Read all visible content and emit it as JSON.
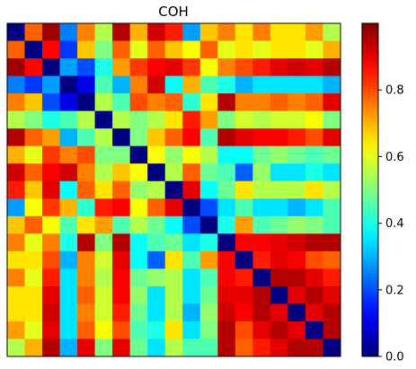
{
  "chart_data": {
    "type": "heatmap",
    "title": "COH",
    "xlabel": "",
    "ylabel": "",
    "colormap": "jet",
    "clim": [
      0.0,
      1.0
    ],
    "colorbar": {
      "ticks": [
        0.0,
        0.2,
        0.4,
        0.6,
        0.8
      ],
      "tick_labels": [
        "0.0",
        "0.2",
        "0.4",
        "0.6",
        "0.8"
      ]
    },
    "matrix": [
      [
        0.0,
        0.78,
        0.97,
        0.25,
        0.75,
        0.55,
        0.95,
        0.7,
        0.92,
        0.85,
        0.28,
        0.68,
        0.75,
        0.65,
        0.75,
        0.65,
        0.65,
        0.72,
        0.55
      ],
      [
        0.78,
        0.0,
        0.87,
        0.18,
        0.68,
        0.5,
        0.78,
        0.6,
        0.78,
        0.68,
        0.62,
        0.78,
        0.6,
        0.65,
        0.6,
        0.65,
        0.65,
        0.6,
        0.7
      ],
      [
        0.97,
        0.87,
        0.0,
        0.28,
        0.2,
        0.4,
        0.72,
        0.82,
        0.88,
        0.9,
        0.82,
        0.62,
        0.75,
        0.8,
        0.85,
        0.9,
        0.92,
        0.9,
        0.95
      ],
      [
        0.25,
        0.18,
        0.28,
        0.0,
        0.1,
        0.45,
        0.3,
        0.75,
        0.92,
        0.38,
        0.7,
        0.45,
        0.4,
        0.3,
        0.35,
        0.35,
        0.35,
        0.35,
        0.3
      ],
      [
        0.75,
        0.68,
        0.2,
        0.1,
        0.0,
        0.55,
        0.45,
        0.8,
        0.75,
        0.78,
        0.42,
        0.65,
        0.95,
        0.75,
        0.75,
        0.78,
        0.75,
        0.78,
        0.9
      ],
      [
        0.55,
        0.5,
        0.4,
        0.45,
        0.55,
        0.0,
        0.55,
        0.5,
        0.55,
        0.65,
        0.85,
        0.72,
        0.5,
        0.58,
        0.55,
        0.58,
        0.58,
        0.62,
        0.5
      ],
      [
        0.95,
        0.78,
        0.72,
        0.3,
        0.45,
        0.55,
        0.0,
        0.5,
        0.68,
        0.78,
        0.88,
        0.45,
        0.95,
        0.9,
        0.88,
        0.88,
        0.85,
        0.8,
        0.9
      ],
      [
        0.7,
        0.6,
        0.82,
        0.75,
        0.8,
        0.5,
        0.5,
        0.0,
        0.62,
        0.52,
        0.62,
        0.55,
        0.38,
        0.38,
        0.48,
        0.52,
        0.48,
        0.45,
        0.48
      ],
      [
        0.92,
        0.78,
        0.88,
        0.92,
        0.75,
        0.55,
        0.68,
        0.62,
        0.0,
        0.55,
        0.78,
        0.48,
        0.45,
        0.22,
        0.52,
        0.35,
        0.35,
        0.4,
        0.35
      ],
      [
        0.85,
        0.68,
        0.9,
        0.38,
        0.78,
        0.65,
        0.78,
        0.52,
        0.55,
        0.0,
        0.9,
        0.38,
        0.48,
        0.65,
        0.55,
        0.55,
        0.55,
        0.65,
        0.55
      ],
      [
        0.28,
        0.62,
        0.82,
        0.7,
        0.42,
        0.85,
        0.88,
        0.62,
        0.78,
        0.9,
        0.0,
        0.2,
        0.35,
        0.45,
        0.35,
        0.35,
        0.3,
        0.35,
        0.45
      ],
      [
        0.68,
        0.78,
        0.62,
        0.45,
        0.65,
        0.72,
        0.45,
        0.55,
        0.48,
        0.38,
        0.2,
        0.0,
        0.4,
        0.72,
        0.45,
        0.48,
        0.52,
        0.5,
        0.45
      ],
      [
        0.75,
        0.6,
        0.75,
        0.4,
        0.95,
        0.5,
        0.95,
        0.38,
        0.45,
        0.48,
        0.35,
        0.4,
        0.0,
        0.88,
        0.88,
        0.9,
        0.92,
        0.95,
        0.95
      ],
      [
        0.65,
        0.65,
        0.8,
        0.3,
        0.75,
        0.58,
        0.9,
        0.38,
        0.22,
        0.65,
        0.45,
        0.72,
        0.88,
        0.0,
        0.85,
        0.9,
        0.88,
        0.8,
        0.78
      ],
      [
        0.75,
        0.6,
        0.85,
        0.35,
        0.75,
        0.55,
        0.88,
        0.48,
        0.52,
        0.55,
        0.35,
        0.45,
        0.88,
        0.85,
        0.0,
        0.95,
        0.95,
        0.9,
        0.85
      ],
      [
        0.65,
        0.65,
        0.9,
        0.35,
        0.78,
        0.58,
        0.88,
        0.52,
        0.35,
        0.55,
        0.35,
        0.48,
        0.9,
        0.9,
        0.95,
        0.0,
        0.9,
        0.95,
        0.9
      ],
      [
        0.65,
        0.65,
        0.92,
        0.35,
        0.75,
        0.58,
        0.85,
        0.48,
        0.35,
        0.55,
        0.3,
        0.52,
        0.92,
        0.88,
        0.95,
        0.9,
        0.0,
        0.9,
        0.95
      ],
      [
        0.72,
        0.6,
        0.9,
        0.35,
        0.78,
        0.62,
        0.8,
        0.45,
        0.4,
        0.65,
        0.35,
        0.5,
        0.95,
        0.8,
        0.9,
        0.95,
        0.9,
        0.0,
        0.95
      ],
      [
        0.55,
        0.7,
        0.95,
        0.3,
        0.9,
        0.5,
        0.9,
        0.48,
        0.35,
        0.55,
        0.45,
        0.45,
        0.95,
        0.78,
        0.85,
        0.9,
        0.95,
        0.95,
        0.0
      ]
    ]
  }
}
